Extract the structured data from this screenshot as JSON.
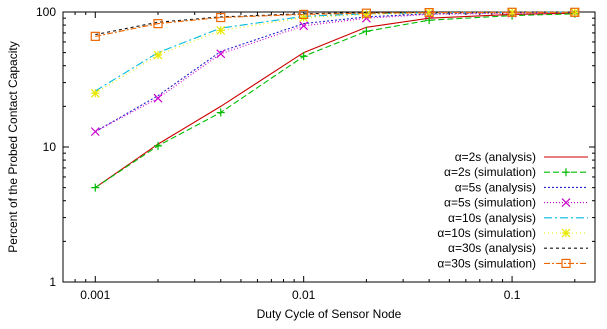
{
  "chart_data": {
    "type": "line",
    "title": "",
    "xlabel": "Duty Cycle of Sensor Node",
    "ylabel": "Percent of the Probed Contact Capacity",
    "xscale": "log",
    "yscale": "log",
    "xlim": [
      0.0007,
      0.25
    ],
    "ylim": [
      1,
      100
    ],
    "xticks": [
      0.001,
      0.01,
      0.1
    ],
    "xtick_labels": [
      "0.001",
      "0.01",
      "0.1"
    ],
    "yticks": [
      1,
      10,
      100
    ],
    "ytick_labels": [
      "1",
      "10",
      "100"
    ],
    "grid": false,
    "legend_position": "bottom-right",
    "series": [
      {
        "name": "α=2s (analysis)",
        "color": "#cc0000",
        "dash": "solid",
        "marker": "none",
        "x": [
          0.001,
          0.002,
          0.004,
          0.01,
          0.02,
          0.04,
          0.1,
          0.2
        ],
        "y": [
          5,
          10.5,
          20,
          50,
          77,
          90,
          96,
          98
        ]
      },
      {
        "name": "α=2s (simulation)",
        "color": "#00bb00",
        "dash": "6,3",
        "marker": "plus",
        "x": [
          0.001,
          0.002,
          0.004,
          0.01,
          0.02,
          0.04,
          0.1,
          0.2
        ],
        "y": [
          5,
          10.2,
          18,
          47,
          72,
          87,
          94,
          97
        ]
      },
      {
        "name": "α=5s (analysis)",
        "color": "#2222cc",
        "dash": "2,2",
        "marker": "none",
        "x": [
          0.001,
          0.002,
          0.004,
          0.01,
          0.02,
          0.04,
          0.1,
          0.2
        ],
        "y": [
          13,
          24,
          51,
          82,
          92,
          97,
          99,
          99.5
        ]
      },
      {
        "name": "α=5s (simulation)",
        "color": "#cc00cc",
        "dash": "1,2",
        "marker": "x",
        "x": [
          0.001,
          0.002,
          0.004,
          0.01,
          0.02,
          0.04,
          0.1,
          0.2
        ],
        "y": [
          13,
          23,
          49,
          79,
          90,
          96,
          98,
          99
        ]
      },
      {
        "name": "α=10s (analysis)",
        "color": "#00bbdd",
        "dash": "8,3,2,3",
        "marker": "none",
        "x": [
          0.001,
          0.002,
          0.004,
          0.01,
          0.02,
          0.04,
          0.1,
          0.2
        ],
        "y": [
          26,
          50,
          76,
          93,
          97,
          99,
          99.5,
          100
        ]
      },
      {
        "name": "α=10s (simulation)",
        "color": "#e8e800",
        "dash": "1,3",
        "marker": "asterisk",
        "x": [
          0.001,
          0.002,
          0.004,
          0.01,
          0.02,
          0.04,
          0.1,
          0.2
        ],
        "y": [
          25,
          48,
          73,
          91,
          96,
          98.5,
          99,
          99.5
        ]
      },
      {
        "name": "α=30s (analysis)",
        "color": "#111111",
        "dash": "3,3",
        "marker": "none",
        "x": [
          0.001,
          0.002,
          0.004,
          0.01,
          0.02,
          0.04,
          0.1,
          0.2
        ],
        "y": [
          68,
          84,
          92,
          97,
          99,
          99.5,
          100,
          100
        ]
      },
      {
        "name": "α=30s (simulation)",
        "color": "#ee6600",
        "dash": "6,2,2,2",
        "marker": "square",
        "x": [
          0.001,
          0.002,
          0.004,
          0.01,
          0.02,
          0.04,
          0.1,
          0.2
        ],
        "y": [
          66,
          82,
          91,
          96,
          98,
          99,
          99.5,
          99.5
        ]
      }
    ]
  }
}
